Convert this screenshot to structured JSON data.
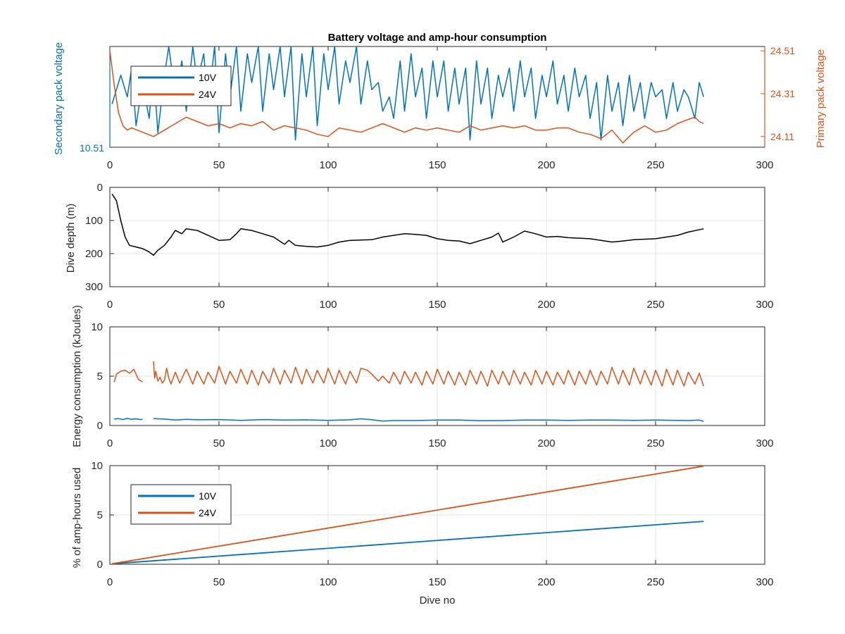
{
  "figure": {
    "title": "Battery voltage and amp-hour consumption",
    "xlabel": "Dive no",
    "colors": {
      "blue": "#0072BD",
      "orange": "#D95319",
      "black": "#000000",
      "grid": "#e4e4e4",
      "axis": "#262626"
    }
  },
  "chart_data": [
    {
      "id": "voltage",
      "type": "line",
      "title": "Battery voltage and amp-hour consumption",
      "xlim": [
        0,
        300
      ],
      "xticks": [
        0,
        50,
        100,
        150,
        200,
        250,
        300
      ],
      "ylabel_left": "Secondary pack voltage",
      "ylabel_right": "Primary pack voltage",
      "yticks_left": [
        "10.51"
      ],
      "yticks_right": [
        "24.51",
        "24.31",
        "24.11"
      ],
      "ylim_right": [
        24.06,
        24.53
      ],
      "legend": {
        "position": "top-left",
        "entries": [
          "10V",
          "24V"
        ]
      },
      "grid": false,
      "series": [
        {
          "name": "10V",
          "axis": "left",
          "color": "#0072BD",
          "ylim_display": [
            10.51,
            10.65
          ],
          "x": [
            1,
            3,
            5,
            8,
            10,
            12,
            15,
            18,
            20,
            22,
            25,
            27,
            30,
            33,
            35,
            38,
            40,
            43,
            45,
            48,
            50,
            53,
            55,
            58,
            60,
            63,
            65,
            68,
            70,
            73,
            75,
            78,
            80,
            83,
            85,
            88,
            90,
            93,
            95,
            98,
            100,
            103,
            105,
            108,
            110,
            113,
            115,
            118,
            120,
            123,
            125,
            128,
            130,
            133,
            135,
            138,
            140,
            143,
            145,
            148,
            150,
            153,
            155,
            158,
            160,
            163,
            165,
            168,
            170,
            173,
            175,
            178,
            180,
            183,
            185,
            188,
            190,
            193,
            195,
            198,
            200,
            203,
            205,
            208,
            210,
            213,
            215,
            218,
            220,
            223,
            225,
            228,
            230,
            233,
            235,
            238,
            240,
            243,
            245,
            248,
            250,
            253,
            255,
            258,
            260,
            263,
            265,
            268,
            270,
            272
          ],
          "values": [
            10.57,
            10.59,
            10.61,
            10.58,
            10.62,
            10.54,
            10.6,
            10.55,
            10.62,
            10.53,
            10.61,
            10.65,
            10.58,
            10.63,
            10.56,
            10.65,
            10.6,
            10.64,
            10.57,
            10.65,
            10.53,
            10.64,
            10.58,
            10.65,
            10.56,
            10.64,
            10.6,
            10.65,
            10.56,
            10.64,
            10.59,
            10.65,
            10.58,
            10.65,
            10.52,
            10.64,
            10.58,
            10.65,
            10.54,
            10.64,
            10.59,
            10.65,
            10.57,
            10.63,
            10.6,
            10.65,
            10.57,
            10.63,
            10.59,
            10.6,
            10.56,
            10.58,
            10.55,
            10.63,
            10.56,
            10.64,
            10.58,
            10.62,
            10.55,
            10.63,
            10.58,
            10.63,
            10.56,
            10.62,
            10.57,
            10.62,
            10.52,
            10.63,
            10.57,
            10.62,
            10.55,
            10.61,
            10.58,
            10.62,
            10.56,
            10.63,
            10.58,
            10.62,
            10.55,
            10.61,
            10.58,
            10.63,
            10.57,
            10.61,
            10.56,
            10.62,
            10.58,
            10.61,
            10.55,
            10.6,
            10.52,
            10.61,
            10.56,
            10.6,
            10.54,
            10.61,
            10.56,
            10.6,
            10.55,
            10.6,
            10.58,
            10.59,
            10.55,
            10.6,
            10.56,
            10.59,
            10.58,
            10.55,
            10.6,
            10.58
          ]
        },
        {
          "name": "24V",
          "axis": "right",
          "color": "#D95319",
          "x": [
            0,
            2,
            4,
            6,
            8,
            10,
            15,
            20,
            25,
            30,
            35,
            40,
            45,
            50,
            55,
            60,
            65,
            70,
            75,
            80,
            85,
            90,
            95,
            100,
            105,
            110,
            115,
            120,
            125,
            130,
            135,
            140,
            145,
            150,
            155,
            160,
            165,
            170,
            175,
            180,
            185,
            190,
            195,
            200,
            205,
            210,
            215,
            220,
            225,
            230,
            235,
            240,
            245,
            250,
            255,
            260,
            265,
            268,
            270,
            272
          ],
          "values": [
            24.51,
            24.35,
            24.22,
            24.16,
            24.14,
            24.15,
            24.13,
            24.11,
            24.14,
            24.17,
            24.2,
            24.18,
            24.16,
            24.17,
            24.15,
            24.17,
            24.16,
            24.18,
            24.14,
            24.16,
            24.15,
            24.14,
            24.12,
            24.11,
            24.15,
            24.14,
            24.13,
            24.15,
            24.17,
            24.15,
            24.13,
            24.15,
            24.14,
            24.15,
            24.14,
            24.13,
            24.16,
            24.14,
            24.15,
            24.16,
            24.15,
            24.16,
            24.14,
            24.14,
            24.15,
            24.15,
            24.13,
            24.12,
            24.1,
            24.14,
            24.08,
            24.13,
            24.16,
            24.13,
            24.14,
            24.17,
            24.19,
            24.2,
            24.18,
            24.17
          ]
        }
      ]
    },
    {
      "id": "depth",
      "type": "line",
      "xlim": [
        0,
        300
      ],
      "xticks": [
        0,
        50,
        100,
        150,
        200,
        250,
        300
      ],
      "ylabel": "Dive depth (m)",
      "ylim": [
        0,
        300
      ],
      "y_reversed": true,
      "yticks": [
        "0",
        "100",
        "200",
        "300"
      ],
      "grid": true,
      "series": [
        {
          "color": "#000000",
          "x": [
            1,
            3,
            5,
            7,
            9,
            12,
            15,
            18,
            20,
            22,
            25,
            28,
            30,
            33,
            35,
            38,
            40,
            45,
            50,
            55,
            58,
            60,
            65,
            70,
            75,
            80,
            82,
            85,
            90,
            95,
            100,
            105,
            110,
            120,
            125,
            130,
            135,
            140,
            145,
            150,
            155,
            160,
            165,
            170,
            175,
            178,
            180,
            185,
            190,
            195,
            200,
            205,
            210,
            220,
            225,
            230,
            235,
            240,
            250,
            260,
            265,
            272
          ],
          "values": [
            20,
            40,
            100,
            150,
            175,
            180,
            185,
            195,
            205,
            190,
            175,
            150,
            130,
            140,
            125,
            128,
            130,
            145,
            160,
            158,
            140,
            125,
            130,
            140,
            150,
            172,
            160,
            175,
            178,
            180,
            175,
            165,
            160,
            158,
            150,
            145,
            140,
            142,
            145,
            155,
            160,
            162,
            170,
            160,
            150,
            138,
            165,
            150,
            132,
            140,
            150,
            148,
            152,
            155,
            160,
            165,
            162,
            158,
            155,
            145,
            135,
            125
          ]
        }
      ]
    },
    {
      "id": "energy",
      "type": "line",
      "xlim": [
        0,
        300
      ],
      "xticks": [
        0,
        50,
        100,
        150,
        200,
        250,
        300
      ],
      "ylabel": "Energy consumption (kJoules)",
      "ylim": [
        0,
        10
      ],
      "yticks": [
        "0",
        "5",
        "10"
      ],
      "grid": true,
      "series": [
        {
          "name": "24V",
          "color": "#D95319",
          "segments": [
            {
              "x": [
                2,
                3,
                5,
                7,
                9,
                11,
                13,
                15
              ],
              "values": [
                4.4,
                5.2,
                5.5,
                5.6,
                5.3,
                5.7,
                4.7,
                4.4
              ]
            },
            {
              "x": [
                20,
                20.5,
                21,
                22,
                23,
                24,
                25,
                26,
                27,
                28,
                30,
                32,
                35,
                38,
                40,
                43,
                45,
                48,
                50,
                53,
                55,
                58,
                60,
                63,
                65,
                68,
                70,
                73,
                75,
                78,
                80,
                83,
                85,
                88,
                90,
                93,
                95,
                98,
                100,
                103,
                105,
                108,
                110,
                113,
                115,
                118,
                120,
                123,
                125,
                128,
                130,
                133,
                135,
                138,
                140,
                143,
                145,
                148,
                150,
                153,
                155,
                158,
                160,
                163,
                165,
                168,
                170,
                173,
                175,
                178,
                180,
                183,
                185,
                188,
                190,
                193,
                195,
                198,
                200,
                203,
                205,
                208,
                210,
                213,
                215,
                218,
                220,
                223,
                225,
                228,
                230,
                233,
                235,
                238,
                240,
                243,
                245,
                248,
                250,
                253,
                255,
                258,
                260,
                263,
                265,
                268,
                270,
                272
              ],
              "values": [
                6.5,
                4.8,
                5.5,
                4.5,
                4.9,
                4.3,
                4.6,
                5.8,
                4.8,
                4.2,
                5.4,
                4.3,
                5.7,
                4.2,
                5.5,
                4.2,
                5.4,
                4.3,
                6.0,
                4.2,
                5.5,
                4.3,
                5.7,
                4.2,
                5.6,
                4.1,
                5.5,
                4.3,
                5.8,
                4.2,
                5.6,
                4.3,
                5.9,
                4.2,
                5.7,
                4.3,
                5.6,
                4.3,
                5.8,
                4.2,
                5.6,
                4.2,
                5.5,
                4.3,
                5.8,
                5.6,
                5.2,
                4.5,
                5.0,
                4.3,
                5.4,
                4.2,
                5.5,
                4.3,
                5.4,
                4.1,
                5.5,
                4.2,
                5.7,
                4.2,
                5.5,
                4.1,
                5.4,
                4.1,
                5.6,
                4.2,
                5.5,
                4.0,
                5.6,
                4.2,
                5.5,
                4.1,
                5.6,
                4.2,
                5.4,
                4.1,
                5.6,
                4.2,
                5.5,
                4.1,
                5.4,
                4.2,
                5.6,
                4.1,
                5.5,
                4.2,
                5.6,
                4.1,
                5.5,
                4.2,
                5.9,
                4.2,
                5.6,
                4.1,
                5.8,
                4.2,
                5.6,
                4.1,
                5.6,
                4.0,
                5.7,
                4.1,
                5.6,
                4.0,
                5.4,
                4.2,
                5.3,
                4.0
              ]
            }
          ]
        },
        {
          "name": "10V",
          "color": "#0072BD",
          "segments": [
            {
              "x": [
                2,
                4,
                6,
                8,
                10,
                12,
                14,
                15
              ],
              "values": [
                0.65,
                0.7,
                0.6,
                0.72,
                0.62,
                0.68,
                0.6,
                0.62
              ]
            },
            {
              "x": [
                20,
                25,
                30,
                35,
                40,
                50,
                60,
                70,
                80,
                90,
                100,
                110,
                115,
                120,
                125,
                130,
                140,
                150,
                160,
                170,
                180,
                190,
                200,
                210,
                220,
                230,
                240,
                250,
                260,
                265,
                270,
                272
              ],
              "values": [
                0.7,
                0.65,
                0.55,
                0.62,
                0.58,
                0.6,
                0.52,
                0.6,
                0.55,
                0.57,
                0.52,
                0.58,
                0.68,
                0.58,
                0.45,
                0.5,
                0.5,
                0.55,
                0.55,
                0.48,
                0.5,
                0.55,
                0.55,
                0.52,
                0.55,
                0.55,
                0.52,
                0.55,
                0.52,
                0.5,
                0.55,
                0.42
              ]
            }
          ]
        }
      ]
    },
    {
      "id": "amphours",
      "type": "line",
      "xlim": [
        0,
        300
      ],
      "xticks": [
        0,
        50,
        100,
        150,
        200,
        250,
        300
      ],
      "xlabel": "Dive no",
      "ylabel": "% of amp-hours used",
      "ylim": [
        0,
        10
      ],
      "yticks": [
        "0",
        "5",
        "10"
      ],
      "grid": true,
      "legend": {
        "position": "middle-left",
        "entries": [
          "10V",
          "24V"
        ]
      },
      "series": [
        {
          "name": "10V",
          "color": "#0072BD",
          "x": [
            1,
            272
          ],
          "values": [
            0.05,
            4.35
          ]
        },
        {
          "name": "24V",
          "color": "#D95319",
          "x": [
            1,
            272
          ],
          "values": [
            0.05,
            9.95
          ]
        }
      ]
    }
  ]
}
